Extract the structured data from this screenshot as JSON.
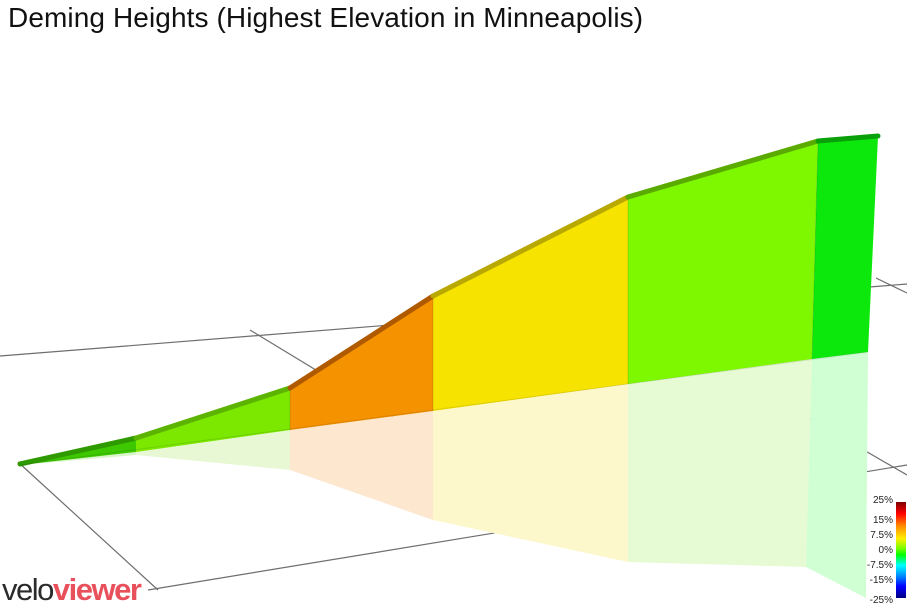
{
  "title": "Deming Heights (Highest Elevation in Minneapolis)",
  "brand": {
    "part1": "velo",
    "part2": "viewer",
    "part2_color": "#e8505b"
  },
  "gradient_legend": {
    "labels": [
      "25%",
      "15%",
      "7.5%",
      "0%",
      "-7.5%",
      "-15%",
      "-25%"
    ]
  },
  "segment_colors": [
    "#3ec800",
    "#7ce800",
    "#f59200",
    "#f6e400",
    "#7ef800",
    "#0ce80c"
  ],
  "segment_shadow_colors": [
    "#d9f5c9",
    "#e8f8d4",
    "#fde7cf",
    "#fdf8cc",
    "#e6fbd3",
    "#cfffd3"
  ]
}
